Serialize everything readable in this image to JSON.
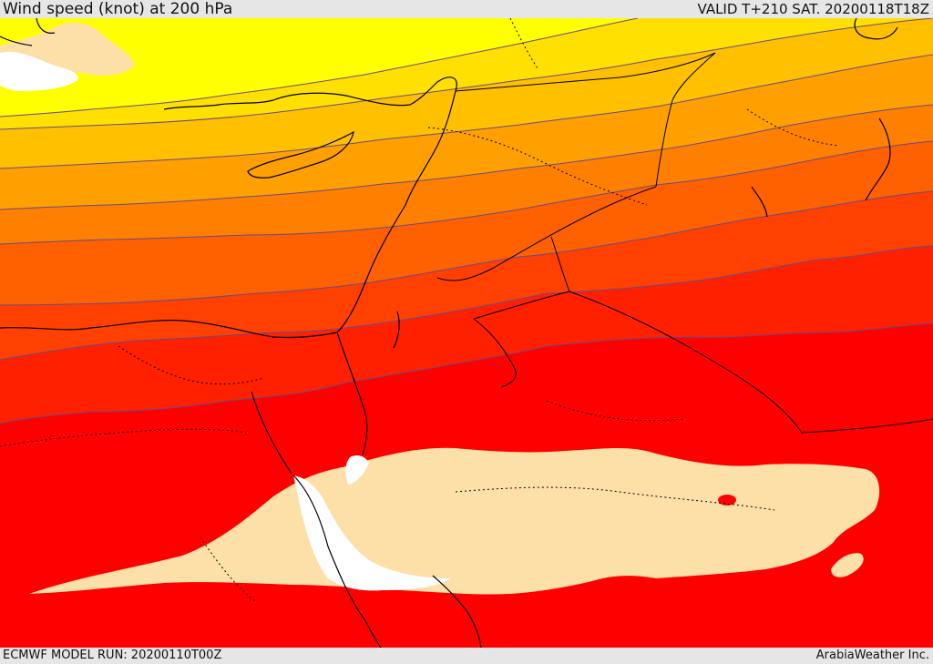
{
  "header": {
    "title": "Wind speed (knot) at 200 hPa",
    "valid": "VALID T+210 SAT. 20200118T18Z"
  },
  "footer": {
    "model_run": "ECMWF MODEL RUN: 20200110T00Z",
    "credit": "ArabiaWeather Inc."
  },
  "map": {
    "colors": {
      "band_1": "#ffff00",
      "band_2": "#ffe000",
      "band_3": "#ffc000",
      "band_4": "#ffa000",
      "band_5": "#ff8000",
      "band_6": "#ff6000",
      "band_7": "#ff4000",
      "band_8": "#ff2000",
      "band_9": "#ff0000",
      "calm_area": "#fddfa8",
      "no_data": "#ffffff",
      "border": "#000000",
      "isotach": "#6a4a8a"
    }
  }
}
